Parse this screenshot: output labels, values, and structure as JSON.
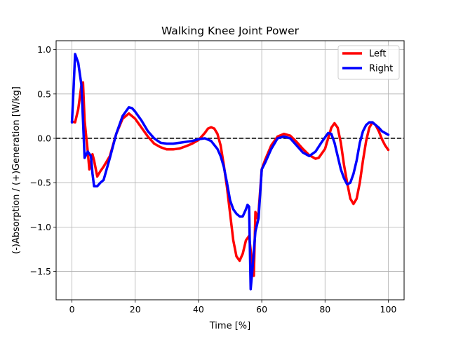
{
  "chart_data": {
    "type": "line",
    "title": "Walking Knee Joint Power",
    "xlabel": "Time [%]",
    "ylabel": "(-)Absorption / (+)Generation [W/kg]",
    "xlim": [
      -5,
      105
    ],
    "ylim": [
      -1.82,
      1.1
    ],
    "xticks": [
      0,
      20,
      40,
      60,
      80,
      100
    ],
    "yticks": [
      -1.5,
      -1.0,
      -0.5,
      0.0,
      0.5,
      1.0
    ],
    "xtick_labels": [
      "0",
      "20",
      "40",
      "60",
      "80",
      "100"
    ],
    "ytick_labels": [
      "−1.5",
      "−1.0",
      "−0.5",
      "0.0",
      "0.5",
      "1.0"
    ],
    "grid": true,
    "legend_position": "top-right",
    "reference_line": {
      "y": 0,
      "style": "dashed",
      "color": "#000000"
    },
    "series": [
      {
        "name": "Left",
        "color": "#ff0000",
        "points": [
          [
            0,
            0.19
          ],
          [
            1,
            0.18
          ],
          [
            2,
            0.33
          ],
          [
            3,
            0.6
          ],
          [
            3.5,
            0.63
          ],
          [
            4,
            0.2
          ],
          [
            5,
            -0.15
          ],
          [
            5.5,
            -0.35
          ],
          [
            6.5,
            -0.18
          ],
          [
            7,
            -0.25
          ],
          [
            8,
            -0.43
          ],
          [
            9,
            -0.37
          ],
          [
            10,
            -0.32
          ],
          [
            12,
            -0.2
          ],
          [
            14,
            0.05
          ],
          [
            16,
            0.22
          ],
          [
            18,
            0.28
          ],
          [
            20,
            0.22
          ],
          [
            22,
            0.12
          ],
          [
            24,
            0.02
          ],
          [
            26,
            -0.06
          ],
          [
            28,
            -0.1
          ],
          [
            30,
            -0.125
          ],
          [
            32,
            -0.125
          ],
          [
            34,
            -0.115
          ],
          [
            36,
            -0.09
          ],
          [
            38,
            -0.06
          ],
          [
            40,
            -0.02
          ],
          [
            42,
            0.06
          ],
          [
            43,
            0.11
          ],
          [
            44,
            0.125
          ],
          [
            45,
            0.11
          ],
          [
            46,
            0.05
          ],
          [
            47,
            -0.08
          ],
          [
            48,
            -0.3
          ],
          [
            49,
            -0.55
          ],
          [
            50,
            -0.85
          ],
          [
            51,
            -1.15
          ],
          [
            52,
            -1.33
          ],
          [
            53,
            -1.38
          ],
          [
            54,
            -1.3
          ],
          [
            55,
            -1.15
          ],
          [
            56,
            -1.1
          ],
          [
            57,
            -1.42
          ],
          [
            57.5,
            -1.55
          ],
          [
            58,
            -0.83
          ],
          [
            58.5,
            -0.9
          ],
          [
            59,
            -0.83
          ],
          [
            60,
            -0.35
          ],
          [
            61,
            -0.25
          ],
          [
            63,
            -0.08
          ],
          [
            65,
            0.02
          ],
          [
            67,
            0.05
          ],
          [
            69,
            0.03
          ],
          [
            71,
            -0.04
          ],
          [
            73,
            -0.12
          ],
          [
            75,
            -0.19
          ],
          [
            77,
            -0.23
          ],
          [
            78,
            -0.22
          ],
          [
            80,
            -0.12
          ],
          [
            81,
            0.0
          ],
          [
            82,
            0.12
          ],
          [
            83,
            0.17
          ],
          [
            84,
            0.12
          ],
          [
            85,
            -0.05
          ],
          [
            86,
            -0.3
          ],
          [
            87,
            -0.5
          ],
          [
            88,
            -0.68
          ],
          [
            89,
            -0.74
          ],
          [
            90,
            -0.68
          ],
          [
            91,
            -0.5
          ],
          [
            92,
            -0.25
          ],
          [
            93,
            -0.03
          ],
          [
            94,
            0.12
          ],
          [
            95,
            0.18
          ],
          [
            96,
            0.15
          ],
          [
            97,
            0.08
          ],
          [
            98,
            -0.01
          ],
          [
            99,
            -0.08
          ],
          [
            100,
            -0.13
          ]
        ]
      },
      {
        "name": "Right",
        "color": "#0000ff",
        "points": [
          [
            0,
            0.18
          ],
          [
            0.5,
            0.55
          ],
          [
            1,
            0.95
          ],
          [
            2,
            0.85
          ],
          [
            3,
            0.6
          ],
          [
            3.5,
            0.2
          ],
          [
            4,
            -0.22
          ],
          [
            5,
            -0.15
          ],
          [
            6,
            -0.2
          ],
          [
            6.5,
            -0.4
          ],
          [
            7,
            -0.54
          ],
          [
            8,
            -0.54
          ],
          [
            9,
            -0.5
          ],
          [
            10,
            -0.47
          ],
          [
            12,
            -0.22
          ],
          [
            14,
            0.05
          ],
          [
            16,
            0.25
          ],
          [
            18,
            0.35
          ],
          [
            19,
            0.34
          ],
          [
            20,
            0.3
          ],
          [
            22,
            0.2
          ],
          [
            24,
            0.08
          ],
          [
            26,
            0.0
          ],
          [
            28,
            -0.05
          ],
          [
            30,
            -0.06
          ],
          [
            32,
            -0.06
          ],
          [
            34,
            -0.05
          ],
          [
            36,
            -0.04
          ],
          [
            38,
            -0.03
          ],
          [
            40,
            -0.01
          ],
          [
            42,
            0.0
          ],
          [
            44,
            -0.03
          ],
          [
            46,
            -0.12
          ],
          [
            47,
            -0.2
          ],
          [
            48,
            -0.32
          ],
          [
            49,
            -0.5
          ],
          [
            50,
            -0.7
          ],
          [
            51,
            -0.8
          ],
          [
            52,
            -0.85
          ],
          [
            53,
            -0.88
          ],
          [
            54,
            -0.88
          ],
          [
            55,
            -0.8
          ],
          [
            55.5,
            -0.75
          ],
          [
            56,
            -0.77
          ],
          [
            56.5,
            -1.7
          ],
          [
            57,
            -1.5
          ],
          [
            58,
            -1.05
          ],
          [
            59,
            -0.9
          ],
          [
            60,
            -0.35
          ],
          [
            61,
            -0.28
          ],
          [
            63,
            -0.12
          ],
          [
            65,
            0.0
          ],
          [
            67,
            0.02
          ],
          [
            69,
            0.0
          ],
          [
            71,
            -0.08
          ],
          [
            73,
            -0.16
          ],
          [
            75,
            -0.2
          ],
          [
            77,
            -0.15
          ],
          [
            79,
            -0.04
          ],
          [
            81,
            0.06
          ],
          [
            82,
            0.05
          ],
          [
            83,
            -0.05
          ],
          [
            84,
            -0.2
          ],
          [
            85,
            -0.35
          ],
          [
            86,
            -0.45
          ],
          [
            87,
            -0.52
          ],
          [
            88,
            -0.5
          ],
          [
            89,
            -0.4
          ],
          [
            90,
            -0.25
          ],
          [
            91,
            -0.05
          ],
          [
            92,
            0.08
          ],
          [
            93,
            0.15
          ],
          [
            94,
            0.18
          ],
          [
            95,
            0.18
          ],
          [
            96,
            0.15
          ],
          [
            97,
            0.12
          ],
          [
            98,
            0.08
          ],
          [
            99,
            0.06
          ],
          [
            100,
            0.04
          ]
        ]
      }
    ]
  }
}
